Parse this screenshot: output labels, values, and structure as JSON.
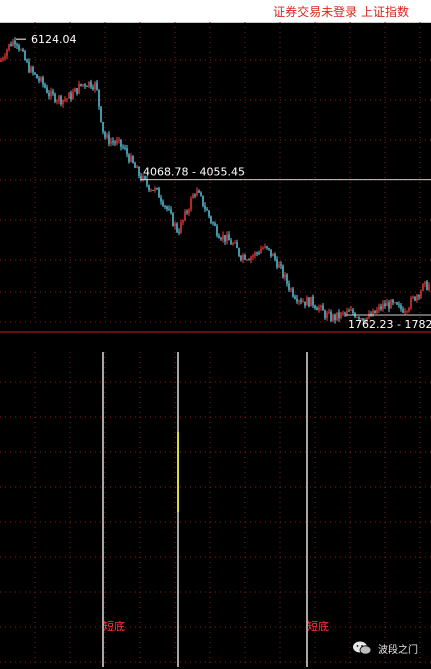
{
  "header": {
    "status_text": "证券交易未登录  上证指数"
  },
  "chart_data": [
    {
      "type": "candlestick",
      "description_series": "index_price",
      "price_range": [
        1700,
        6300
      ],
      "annotations": [
        {
          "label": "6124.04"
        },
        {
          "label": "4068.78 - 4055.45"
        },
        {
          "label": "1762.23 - 1782"
        }
      ],
      "key_points": [
        {
          "t": 0,
          "value": 5800
        },
        {
          "t": 16,
          "value": 6124.04
        },
        {
          "t": 50,
          "value": 5200
        },
        {
          "t": 96,
          "value": 5450
        },
        {
          "t": 104,
          "value": 4700
        },
        {
          "t": 140,
          "value": 4068.78
        },
        {
          "t": 178,
          "value": 3200
        },
        {
          "t": 195,
          "value": 3700
        },
        {
          "t": 240,
          "value": 2700
        },
        {
          "t": 262,
          "value": 2900
        },
        {
          "t": 305,
          "value": 1980
        },
        {
          "t": 345,
          "value": 1762.23
        },
        {
          "t": 400,
          "value": 1950
        },
        {
          "t": 431,
          "value": 2250
        }
      ]
    },
    {
      "type": "bar",
      "signal_series": "short_bottom",
      "range": [
        0,
        100
      ],
      "signals": [
        {
          "t": 103,
          "value": 100,
          "label": "短底"
        },
        {
          "t": 178,
          "value": 100,
          "label": ""
        },
        {
          "t": 307,
          "value": 100,
          "label": "短底"
        }
      ]
    }
  ],
  "watermark": {
    "logo_icon": "wechat-logo-icon",
    "text": "波段之门"
  },
  "colors": {
    "background": "#000000",
    "grid": "#8b1a1a",
    "up": "#ff3b3b",
    "down": "#5fd7ef",
    "label": "#ffffff",
    "signal_bar": "#ffffff",
    "signal_highlight": "#ffff44",
    "signal_label": "#ff3b3b",
    "header_text": "#d9261c"
  }
}
